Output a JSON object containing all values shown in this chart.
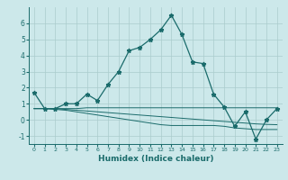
{
  "xlabel": "Humidex (Indice chaleur)",
  "x": [
    0,
    1,
    2,
    3,
    4,
    5,
    6,
    7,
    8,
    9,
    10,
    11,
    12,
    13,
    14,
    15,
    16,
    17,
    18,
    19,
    20,
    21,
    22,
    23
  ],
  "line1": [
    1.7,
    0.7,
    0.7,
    1.0,
    1.0,
    1.6,
    1.2,
    2.2,
    3.0,
    4.3,
    4.5,
    5.0,
    5.6,
    6.5,
    5.3,
    3.6,
    3.5,
    1.6,
    0.8,
    -0.4,
    0.5,
    -1.2,
    0.0,
    0.7
  ],
  "line2": [
    0.7,
    0.7,
    0.7,
    0.7,
    0.7,
    0.75,
    0.75,
    0.75,
    0.75,
    0.75,
    0.75,
    0.75,
    0.75,
    0.75,
    0.75,
    0.75,
    0.75,
    0.75,
    0.75,
    0.75,
    0.75,
    0.75,
    0.75,
    0.75
  ],
  "line3": [
    0.7,
    0.7,
    0.7,
    0.65,
    0.6,
    0.55,
    0.5,
    0.45,
    0.4,
    0.35,
    0.3,
    0.25,
    0.2,
    0.15,
    0.1,
    0.05,
    0.0,
    -0.05,
    -0.1,
    -0.15,
    -0.2,
    -0.25,
    -0.28,
    -0.3
  ],
  "line4": [
    0.7,
    0.7,
    0.65,
    0.6,
    0.5,
    0.4,
    0.3,
    0.2,
    0.1,
    0.0,
    -0.1,
    -0.2,
    -0.3,
    -0.35,
    -0.35,
    -0.35,
    -0.35,
    -0.35,
    -0.4,
    -0.5,
    -0.55,
    -0.6,
    -0.6,
    -0.6
  ],
  "ylim": [
    -1.5,
    7.0
  ],
  "xlim": [
    -0.5,
    23.5
  ],
  "yticks": [
    -1,
    0,
    1,
    2,
    3,
    4,
    5,
    6
  ],
  "xticks": [
    0,
    1,
    2,
    3,
    4,
    5,
    6,
    7,
    8,
    9,
    10,
    11,
    12,
    13,
    14,
    15,
    16,
    17,
    18,
    19,
    20,
    21,
    22,
    23
  ],
  "line_color": "#1a6b6b",
  "bg_color": "#cce8ea",
  "grid_color": "#aacccc",
  "axes_bg": "#cce8ea"
}
